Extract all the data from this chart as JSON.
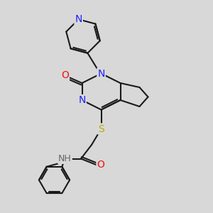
{
  "bg_color": "#d8d8d8",
  "atom_colors": {
    "C": "#1a1a1a",
    "N": "#2020ff",
    "O": "#ee1111",
    "S": "#bbaa00",
    "H": "#666666"
  },
  "bond_color": "#1a1a1a",
  "bond_width": 1.5,
  "font_size_atom": 10,
  "figsize": [
    3.0,
    3.0
  ],
  "dpi": 100
}
